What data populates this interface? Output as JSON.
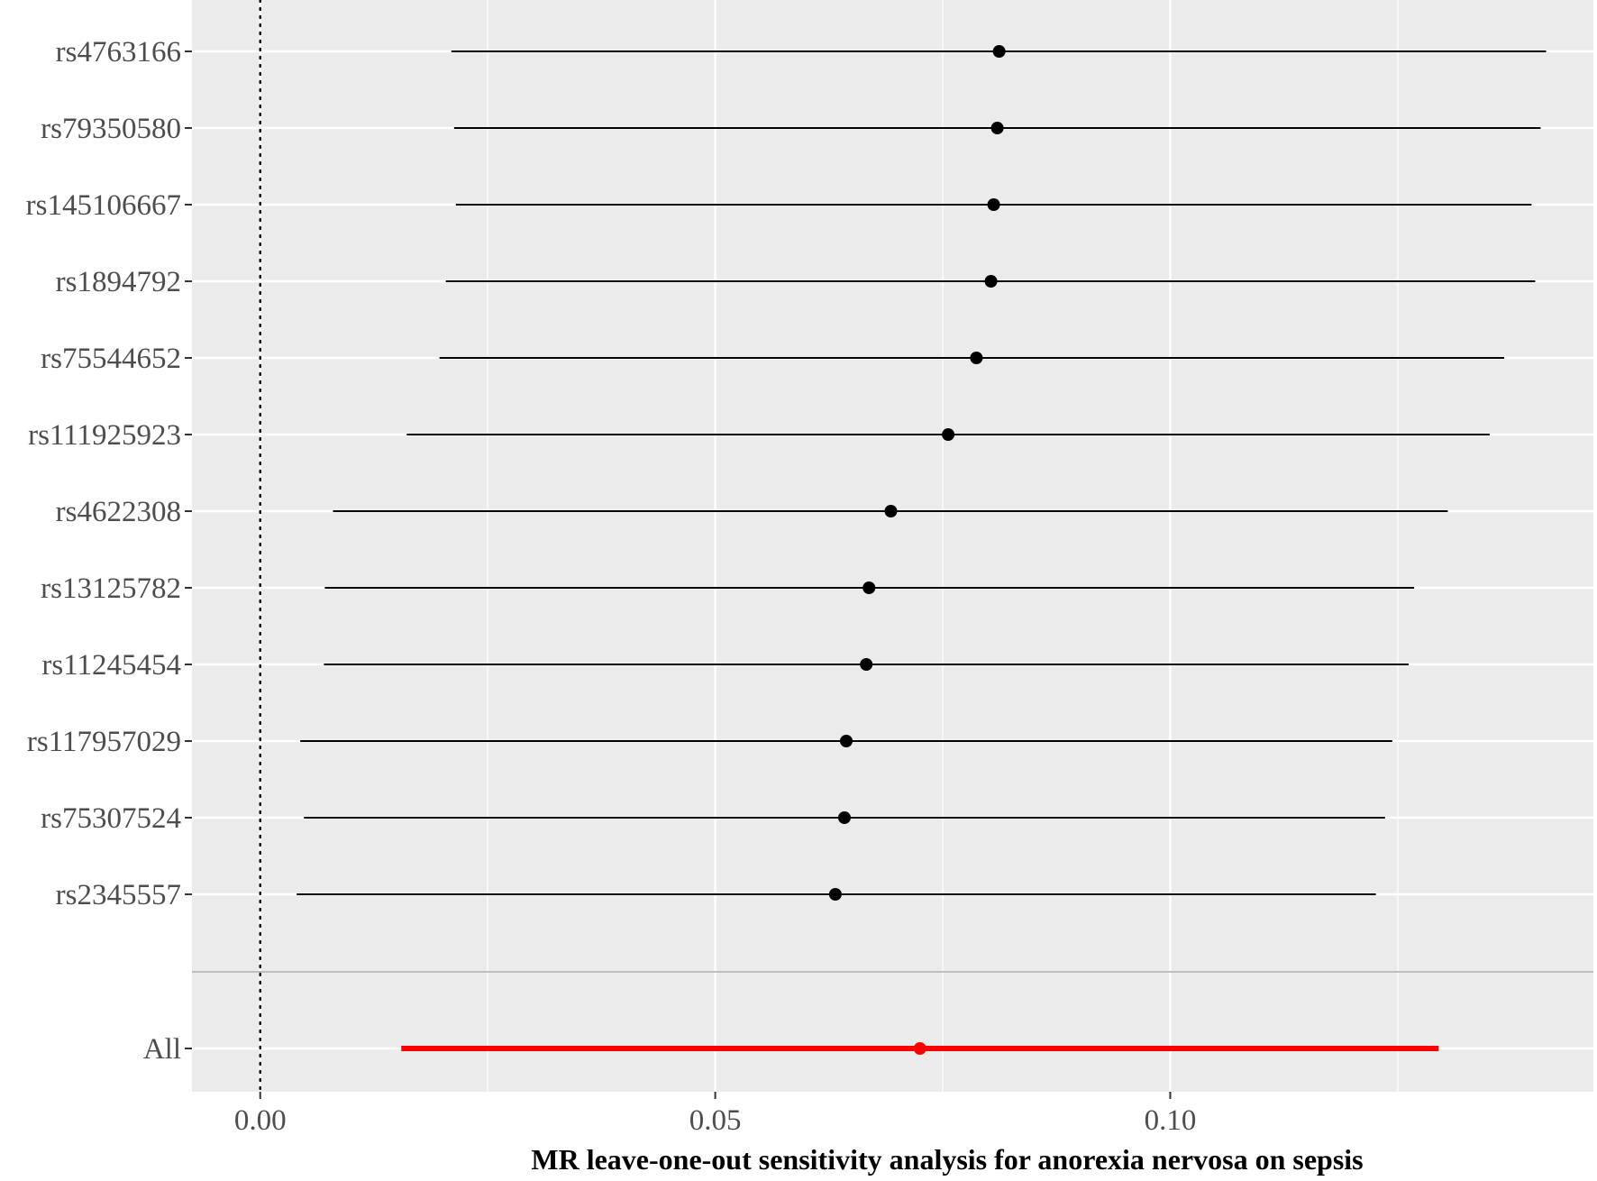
{
  "chart_data": {
    "type": "forest",
    "title": "",
    "xlabel": "MR leave-one-out sensitivity analysis for anorexia nervosa on sepsis",
    "ylabel": "",
    "xlim": [
      -0.0075,
      0.1465
    ],
    "x_ticks": [
      {
        "value": 0.0,
        "label": "0.00"
      },
      {
        "value": 0.05,
        "label": "0.05"
      },
      {
        "value": 0.1,
        "label": "0.10"
      }
    ],
    "reference_line": 0,
    "grid": true,
    "rows": [
      {
        "label": "rs4763166",
        "b": 0.0812,
        "lo": 0.021,
        "hi": 0.1413
      },
      {
        "label": "rs79350580",
        "b": 0.081,
        "lo": 0.0213,
        "hi": 0.1407
      },
      {
        "label": "rs145106667",
        "b": 0.0806,
        "lo": 0.0215,
        "hi": 0.1397
      },
      {
        "label": "rs1894792",
        "b": 0.0803,
        "lo": 0.0204,
        "hi": 0.1401
      },
      {
        "label": "rs75544652",
        "b": 0.0787,
        "lo": 0.0197,
        "hi": 0.1367
      },
      {
        "label": "rs111925923",
        "b": 0.0756,
        "lo": 0.0161,
        "hi": 0.1351
      },
      {
        "label": "rs4622308",
        "b": 0.0693,
        "lo": 0.008,
        "hi": 0.1305
      },
      {
        "label": "rs13125782",
        "b": 0.0669,
        "lo": 0.0071,
        "hi": 0.1268
      },
      {
        "label": "rs11245454",
        "b": 0.0666,
        "lo": 0.007,
        "hi": 0.1262
      },
      {
        "label": "rs117957029",
        "b": 0.0644,
        "lo": 0.0044,
        "hi": 0.1244
      },
      {
        "label": "rs75307524",
        "b": 0.0642,
        "lo": 0.0048,
        "hi": 0.1236
      },
      {
        "label": "rs2345557",
        "b": 0.0632,
        "lo": 0.004,
        "hi": 0.1226
      }
    ],
    "summary": {
      "label": "All",
      "b": 0.0725,
      "lo": 0.0155,
      "hi": 0.1295
    },
    "colors": {
      "panel": "#ebebeb",
      "grid": "#ffffff",
      "separator": "#bebebe",
      "row_marker": "#000000",
      "summary_marker": "#ff0000",
      "tick_text": "#4d4d4d"
    }
  }
}
